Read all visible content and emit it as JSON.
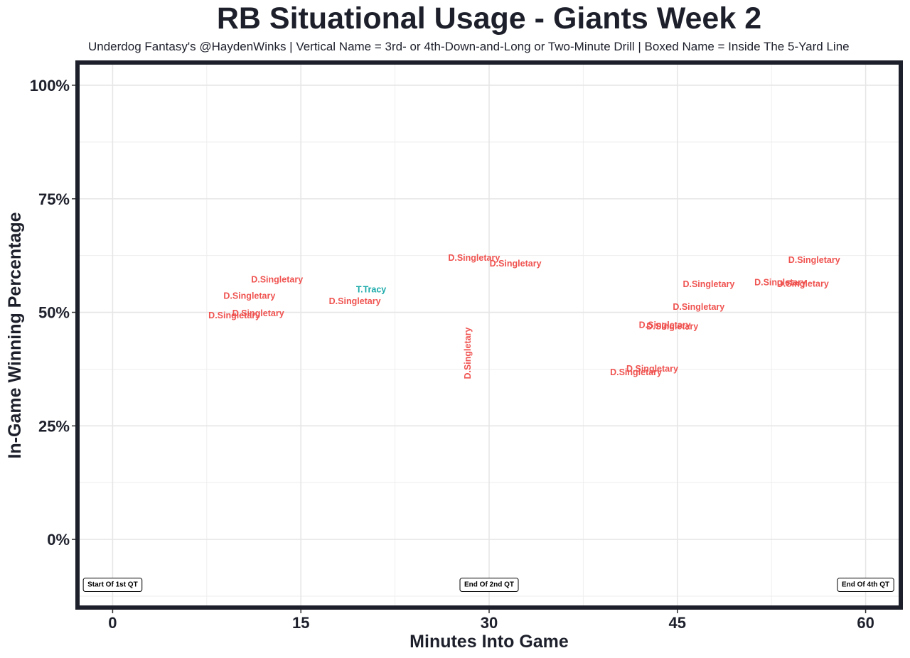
{
  "chart_data": {
    "type": "scatter",
    "title": "RB Situational Usage - Giants Week 2",
    "subtitle": "Underdog Fantasy's @HaydenWinks | Vertical Name = 3rd- or 4th-Down-and-Long or Two-Minute Drill | Boxed Name = Inside The 5-Yard Line",
    "xlabel": "Minutes Into Game",
    "ylabel": "In-Game Winning Percentage",
    "xlim": [
      -2.8,
      62.8
    ],
    "ylim": [
      -15,
      105
    ],
    "x_ticks": [
      0,
      15,
      30,
      45,
      60
    ],
    "x_tick_labels": [
      "0",
      "15",
      "30",
      "45",
      "60"
    ],
    "y_ticks": [
      0,
      25,
      50,
      75,
      100
    ],
    "y_tick_labels": [
      "0%",
      "25%",
      "50%",
      "75%",
      "100%"
    ],
    "grid": true,
    "colors": {
      "D.Singletary": "#ef5350",
      "T.Tracy": "#1aa9a9",
      "text": "#1d202b",
      "panel_border": "#1d202b"
    },
    "points": [
      {
        "x": 13.1,
        "y": 57.2,
        "player": "D.Singletary",
        "vertical": false
      },
      {
        "x": 10.9,
        "y": 53.6,
        "player": "D.Singletary",
        "vertical": false
      },
      {
        "x": 9.7,
        "y": 49.3,
        "player": "D.Singletary",
        "vertical": false
      },
      {
        "x": 11.6,
        "y": 49.8,
        "player": "D.Singletary",
        "vertical": false
      },
      {
        "x": 20.6,
        "y": 55.0,
        "player": "T.Tracy",
        "vertical": false
      },
      {
        "x": 19.3,
        "y": 52.4,
        "player": "D.Singletary",
        "vertical": false
      },
      {
        "x": 28.8,
        "y": 62.0,
        "player": "D.Singletary",
        "vertical": false
      },
      {
        "x": 32.1,
        "y": 60.7,
        "player": "D.Singletary",
        "vertical": false
      },
      {
        "x": 28.3,
        "y": 41.0,
        "player": "D.Singletary",
        "vertical": true
      },
      {
        "x": 47.5,
        "y": 56.2,
        "player": "D.Singletary",
        "vertical": false
      },
      {
        "x": 46.7,
        "y": 51.2,
        "player": "D.Singletary",
        "vertical": false
      },
      {
        "x": 44.0,
        "y": 47.2,
        "player": "D.Singletary",
        "vertical": false
      },
      {
        "x": 44.6,
        "y": 46.9,
        "player": "D.Singletary",
        "vertical": false
      },
      {
        "x": 43.0,
        "y": 37.6,
        "player": "D.Singletary",
        "vertical": false
      },
      {
        "x": 41.7,
        "y": 36.8,
        "player": "D.Singletary",
        "vertical": false
      },
      {
        "x": 53.2,
        "y": 56.6,
        "player": "D.Singletary",
        "vertical": false
      },
      {
        "x": 55.0,
        "y": 56.3,
        "player": "D.Singletary",
        "vertical": false
      },
      {
        "x": 55.9,
        "y": 61.5,
        "player": "D.Singletary",
        "vertical": false
      }
    ],
    "annotations": [
      {
        "x": 0,
        "y": -10,
        "text": "Start Of 1st QT"
      },
      {
        "x": 30,
        "y": -10,
        "text": "End Of 2nd QT"
      },
      {
        "x": 60,
        "y": -10,
        "text": "End Of 4th QT"
      }
    ]
  }
}
